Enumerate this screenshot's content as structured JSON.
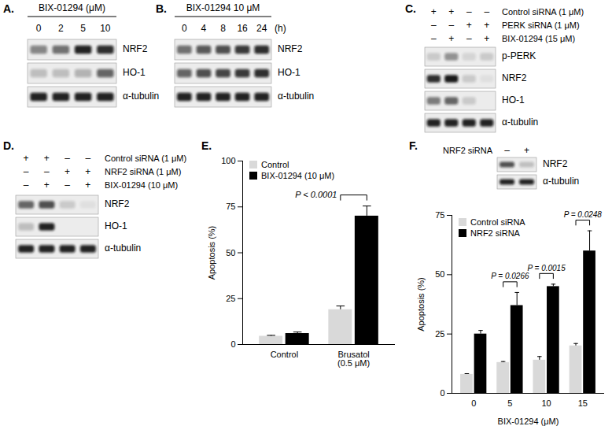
{
  "panels": [
    {
      "label": "A.",
      "header": "BIX-01294 (μM)",
      "lanes": [
        0,
        2,
        5,
        10
      ],
      "rows": [
        {
          "name": "NRF2",
          "band_intensity": [
            0.45,
            0.55,
            0.9,
            0.85
          ]
        },
        {
          "name": "HO-1",
          "band_intensity": [
            0.2,
            0.2,
            0.25,
            0.6
          ]
        },
        {
          "name": "α-tubulin",
          "band_intensity": [
            0.9,
            0.9,
            0.9,
            0.9
          ]
        }
      ]
    },
    {
      "label": "B.",
      "header": "BIX-01294 10 μM",
      "lanes": [
        0,
        4,
        8,
        16,
        24
      ],
      "lane_unit": "(h)",
      "rows": [
        {
          "name": "NRF2",
          "band_intensity": [
            0.55,
            0.65,
            0.7,
            0.8,
            0.85
          ]
        },
        {
          "name": "HO-1",
          "band_intensity": [
            0.6,
            0.7,
            0.75,
            0.8,
            0.85
          ]
        },
        {
          "name": "α-tubulin",
          "band_intensity": [
            0.9,
            0.9,
            0.9,
            0.9,
            0.9
          ]
        }
      ]
    },
    {
      "label": "C.",
      "conditions": [
        {
          "name": "Control siRNA (1 μM)",
          "signs": [
            "+",
            "+",
            "–",
            "–"
          ]
        },
        {
          "name": "PERK siRNA (1 μM)",
          "signs": [
            "–",
            "–",
            "+",
            "+"
          ]
        },
        {
          "name": "BIX-01294 (15 μM)",
          "signs": [
            "–",
            "+",
            "–",
            "+"
          ]
        }
      ],
      "rows": [
        {
          "name": "p-PERK",
          "band_intensity": [
            0.15,
            0.4,
            0.1,
            0.15
          ]
        },
        {
          "name": "NRF2",
          "band_intensity": [
            0.85,
            0.95,
            0.15,
            0.05
          ]
        },
        {
          "name": "HO-1",
          "band_intensity": [
            0.5,
            0.6,
            0.15,
            0.0
          ]
        },
        {
          "name": "α-tubulin",
          "band_intensity": [
            0.9,
            0.9,
            0.9,
            0.9
          ]
        }
      ]
    },
    {
      "label": "D.",
      "conditions": [
        {
          "name": "Control siRNA (1 μM)",
          "signs": [
            "+",
            "+",
            "–",
            "–"
          ]
        },
        {
          "name": "NRF2 siRNA (1 μM)",
          "signs": [
            "–",
            "–",
            "+",
            "+"
          ]
        },
        {
          "name": "BIX-01294 (10 μM)",
          "signs": [
            "–",
            "+",
            "–",
            "+"
          ]
        }
      ],
      "rows": [
        {
          "name": "NRF2",
          "band_intensity": [
            0.6,
            0.7,
            0.15,
            0.05
          ]
        },
        {
          "name": "HO-1",
          "band_intensity": [
            0.2,
            0.9,
            0.0,
            0.0
          ]
        },
        {
          "name": "α-tubulin",
          "band_intensity": [
            0.9,
            0.9,
            0.9,
            0.9
          ]
        }
      ]
    }
  ],
  "chart_data": [
    {
      "panel_label": "E.",
      "type": "bar",
      "categories": [
        "Control",
        "Brusatol\n(0.5 μM)"
      ],
      "series": [
        {
          "name": "Control",
          "color": "#d9d9d9",
          "values": [
            4.5,
            19
          ],
          "errors": [
            0.5,
            2
          ]
        },
        {
          "name": "BIX-01294 (10 μM)",
          "color": "#000000",
          "values": [
            6,
            70
          ],
          "errors": [
            0.8,
            5.5
          ]
        }
      ],
      "y_label": "Apoptosis (%)",
      "ylim": [
        0,
        100
      ],
      "yticks": [
        0,
        25,
        50,
        75,
        100
      ],
      "legend": "top-left",
      "annotations": [
        {
          "category": "Brusatol\n(0.5 μM)",
          "text": "P < 0.0001"
        }
      ]
    },
    {
      "panel_label": "F.",
      "type": "bar",
      "categories": [
        0,
        5,
        10,
        15
      ],
      "series": [
        {
          "name": "Control siRNA",
          "color": "#d9d9d9",
          "values": [
            8,
            13,
            14,
            20
          ],
          "errors": [
            0.3,
            0.4,
            1.5,
            1
          ]
        },
        {
          "name": "NRF2 siRNA",
          "color": "#000000",
          "values": [
            25,
            37,
            45,
            60
          ],
          "errors": [
            1.5,
            5.5,
            1,
            8.5
          ]
        }
      ],
      "x_label": "BIX-01294 (μM)",
      "y_label": "Apoptosis (%)",
      "ylim": [
        0,
        75
      ],
      "yticks": [
        0,
        25,
        50,
        75
      ],
      "legend": "top-left",
      "annotations": [
        {
          "category": 5,
          "text": "P = 0.0266"
        },
        {
          "category": 10,
          "text": "P = 0.0015"
        },
        {
          "category": 15,
          "text": "P = 0.0248"
        }
      ],
      "inset_blot": {
        "header": "NRF2 siRNA",
        "signs": [
          "–",
          "+"
        ],
        "rows": [
          {
            "name": "NRF2",
            "band_intensity": [
              0.7,
              0.2
            ]
          },
          {
            "name": "α-tubulin",
            "band_intensity": [
              0.9,
              0.9
            ]
          }
        ]
      }
    }
  ]
}
